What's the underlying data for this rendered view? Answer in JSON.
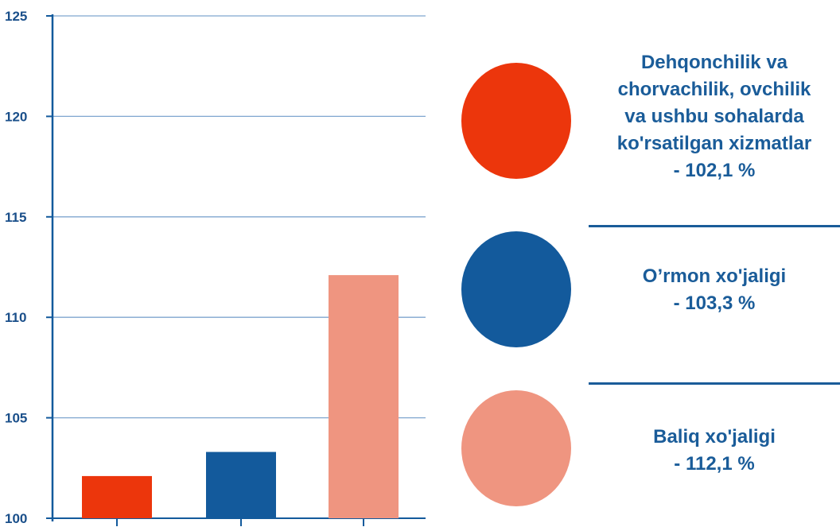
{
  "chart_data": {
    "type": "bar",
    "categories": [
      "Dehqonchilik va chorvachilik, ovchilik va ushbu sohalarda ko'rsatilgan xizmatlar",
      "O'rmon xo'jaligi",
      "Baliq xo'jaligi"
    ],
    "values": [
      102.1,
      103.3,
      112.1
    ],
    "colors": [
      "#ec360c",
      "#135a9c",
      "#ef9580"
    ],
    "ylim": [
      100,
      125
    ],
    "yticks": [
      "100",
      "105",
      "110",
      "115",
      "120",
      "125"
    ],
    "grid": true,
    "legend_position": "right"
  },
  "legend": [
    {
      "lines": [
        "Dehqonchilik va",
        "chorvachilik, ovchilik",
        "va ushbu sohalarda",
        "ko'rsatilgan xizmatlar",
        "- 102,1 %"
      ],
      "color": "#ec360c"
    },
    {
      "lines": [
        "O’rmon xo'jaligi",
        "- 103,3 %"
      ],
      "color": "#135a9c"
    },
    {
      "lines": [
        "Baliq xo'jaligi",
        "- 112,1 %"
      ],
      "color": "#ef9580"
    }
  ],
  "colors": {
    "axis": "#135a9c",
    "grid": "#7fa6cf",
    "text": "#1a5c99"
  }
}
